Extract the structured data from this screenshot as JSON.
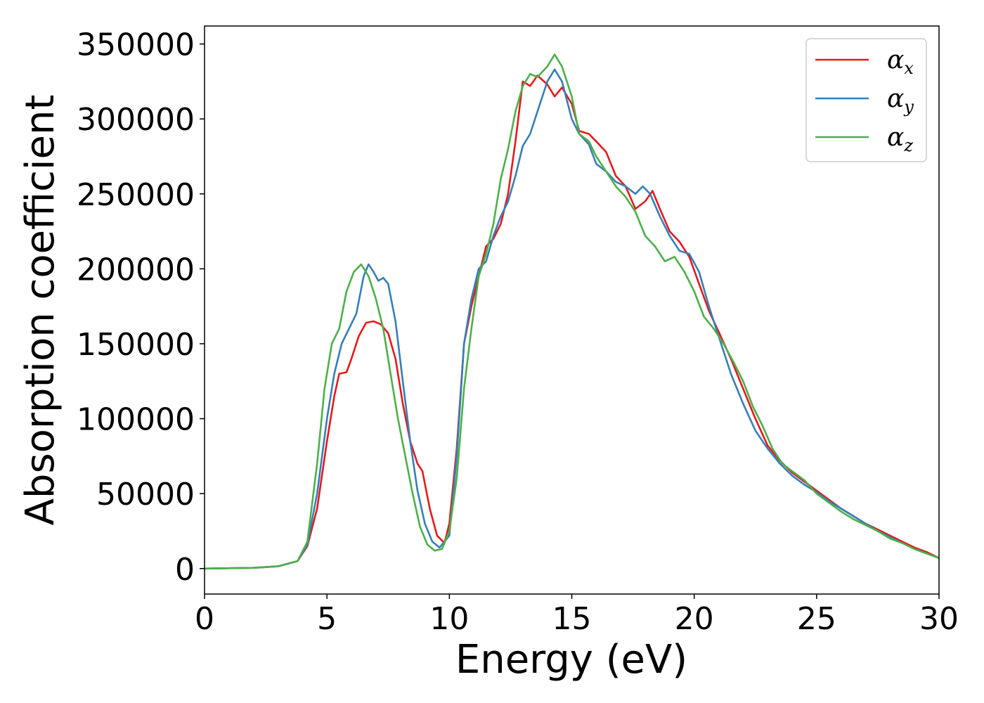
{
  "chart_data": {
    "type": "line",
    "title": "",
    "xlabel": "Energy (eV)",
    "ylabel": "Absorption coefficient",
    "xlim": [
      0,
      30
    ],
    "ylim": [
      -17000,
      362000
    ],
    "xticks": [
      0,
      5,
      10,
      15,
      20,
      25,
      30
    ],
    "xtick_labels": [
      "0",
      "5",
      "10",
      "15",
      "20",
      "25",
      "30"
    ],
    "yticks": [
      0,
      50000,
      100000,
      150000,
      200000,
      250000,
      300000,
      350000
    ],
    "ytick_labels": [
      "0",
      "50000",
      "100000",
      "150000",
      "200000",
      "250000",
      "300000",
      "350000"
    ],
    "grid": false,
    "legend_position": "top-right",
    "series": [
      {
        "name": "α_x",
        "symbol": "α",
        "subscript": "x",
        "color": "#e41a1c",
        "points": [
          [
            0,
            0
          ],
          [
            2,
            500
          ],
          [
            3,
            1500
          ],
          [
            3.8,
            5000
          ],
          [
            4.2,
            15000
          ],
          [
            4.6,
            40000
          ],
          [
            5.0,
            85000
          ],
          [
            5.3,
            115000
          ],
          [
            5.5,
            130000
          ],
          [
            5.8,
            131000
          ],
          [
            6.0,
            140000
          ],
          [
            6.3,
            155000
          ],
          [
            6.6,
            164000
          ],
          [
            6.9,
            165000
          ],
          [
            7.2,
            163000
          ],
          [
            7.5,
            157000
          ],
          [
            7.8,
            140000
          ],
          [
            8.1,
            110000
          ],
          [
            8.4,
            85000
          ],
          [
            8.7,
            70000
          ],
          [
            8.9,
            65000
          ],
          [
            9.2,
            40000
          ],
          [
            9.5,
            22000
          ],
          [
            9.8,
            17000
          ],
          [
            10.0,
            30000
          ],
          [
            10.3,
            80000
          ],
          [
            10.6,
            150000
          ],
          [
            10.9,
            175000
          ],
          [
            11.2,
            195000
          ],
          [
            11.5,
            215000
          ],
          [
            11.8,
            220000
          ],
          [
            12.1,
            230000
          ],
          [
            12.4,
            250000
          ],
          [
            12.7,
            285000
          ],
          [
            13.0,
            325000
          ],
          [
            13.3,
            322000
          ],
          [
            13.6,
            329000
          ],
          [
            14.0,
            323000
          ],
          [
            14.3,
            315000
          ],
          [
            14.6,
            321000
          ],
          [
            15.0,
            310000
          ],
          [
            15.3,
            292000
          ],
          [
            15.7,
            290000
          ],
          [
            16.0,
            285000
          ],
          [
            16.4,
            278000
          ],
          [
            16.8,
            262000
          ],
          [
            17.2,
            255000
          ],
          [
            17.6,
            240000
          ],
          [
            18.0,
            245000
          ],
          [
            18.3,
            252000
          ],
          [
            18.6,
            240000
          ],
          [
            19.0,
            225000
          ],
          [
            19.4,
            218000
          ],
          [
            19.8,
            208000
          ],
          [
            20.2,
            190000
          ],
          [
            20.6,
            172000
          ],
          [
            21.0,
            158000
          ],
          [
            21.5,
            140000
          ],
          [
            22.0,
            120000
          ],
          [
            22.5,
            100000
          ],
          [
            23.0,
            82000
          ],
          [
            23.5,
            72000
          ],
          [
            24.0,
            64000
          ],
          [
            24.5,
            58000
          ],
          [
            25.0,
            52000
          ],
          [
            25.5,
            46000
          ],
          [
            26.0,
            40000
          ],
          [
            26.5,
            35000
          ],
          [
            27.0,
            30000
          ],
          [
            27.5,
            26000
          ],
          [
            28.0,
            22000
          ],
          [
            28.5,
            18000
          ],
          [
            29.0,
            14000
          ],
          [
            29.5,
            11000
          ],
          [
            30.0,
            7000
          ]
        ]
      },
      {
        "name": "α_y",
        "symbol": "α",
        "subscript": "y",
        "color": "#377eb8",
        "points": [
          [
            0,
            0
          ],
          [
            2,
            500
          ],
          [
            3,
            1500
          ],
          [
            3.8,
            5000
          ],
          [
            4.2,
            16000
          ],
          [
            4.6,
            50000
          ],
          [
            5.0,
            100000
          ],
          [
            5.3,
            130000
          ],
          [
            5.6,
            150000
          ],
          [
            5.9,
            160000
          ],
          [
            6.2,
            170000
          ],
          [
            6.5,
            195000
          ],
          [
            6.7,
            203000
          ],
          [
            6.9,
            198000
          ],
          [
            7.1,
            192000
          ],
          [
            7.3,
            194000
          ],
          [
            7.5,
            190000
          ],
          [
            7.8,
            165000
          ],
          [
            8.1,
            125000
          ],
          [
            8.4,
            85000
          ],
          [
            8.7,
            52000
          ],
          [
            9.0,
            30000
          ],
          [
            9.3,
            18000
          ],
          [
            9.6,
            14000
          ],
          [
            10.0,
            22000
          ],
          [
            10.3,
            75000
          ],
          [
            10.6,
            150000
          ],
          [
            10.9,
            180000
          ],
          [
            11.2,
            200000
          ],
          [
            11.5,
            205000
          ],
          [
            11.8,
            222000
          ],
          [
            12.1,
            235000
          ],
          [
            12.4,
            245000
          ],
          [
            12.7,
            262000
          ],
          [
            13.0,
            282000
          ],
          [
            13.3,
            290000
          ],
          [
            13.6,
            305000
          ],
          [
            14.0,
            325000
          ],
          [
            14.3,
            333000
          ],
          [
            14.6,
            325000
          ],
          [
            15.0,
            300000
          ],
          [
            15.3,
            290000
          ],
          [
            15.7,
            283000
          ],
          [
            16.0,
            270000
          ],
          [
            16.4,
            265000
          ],
          [
            16.8,
            258000
          ],
          [
            17.2,
            255000
          ],
          [
            17.6,
            250000
          ],
          [
            17.9,
            255000
          ],
          [
            18.2,
            250000
          ],
          [
            18.6,
            235000
          ],
          [
            19.0,
            222000
          ],
          [
            19.4,
            212000
          ],
          [
            19.8,
            210000
          ],
          [
            20.2,
            198000
          ],
          [
            20.6,
            175000
          ],
          [
            21.0,
            155000
          ],
          [
            21.5,
            130000
          ],
          [
            22.0,
            110000
          ],
          [
            22.5,
            92000
          ],
          [
            23.0,
            80000
          ],
          [
            23.5,
            70000
          ],
          [
            24.0,
            62000
          ],
          [
            24.5,
            56000
          ],
          [
            25.0,
            51000
          ],
          [
            25.5,
            45000
          ],
          [
            26.0,
            40000
          ],
          [
            26.5,
            35000
          ],
          [
            27.0,
            30000
          ],
          [
            27.5,
            25000
          ],
          [
            28.0,
            21000
          ],
          [
            28.5,
            17000
          ],
          [
            29.0,
            13000
          ],
          [
            29.5,
            10000
          ],
          [
            30.0,
            7000
          ]
        ]
      },
      {
        "name": "α_z",
        "symbol": "α",
        "subscript": "z",
        "color": "#4daf4a",
        "points": [
          [
            0,
            0
          ],
          [
            2,
            500
          ],
          [
            3,
            1500
          ],
          [
            3.8,
            5000
          ],
          [
            4.2,
            18000
          ],
          [
            4.6,
            70000
          ],
          [
            4.9,
            120000
          ],
          [
            5.2,
            150000
          ],
          [
            5.5,
            160000
          ],
          [
            5.8,
            185000
          ],
          [
            6.1,
            198000
          ],
          [
            6.4,
            203000
          ],
          [
            6.7,
            195000
          ],
          [
            7.0,
            180000
          ],
          [
            7.3,
            160000
          ],
          [
            7.6,
            130000
          ],
          [
            7.9,
            100000
          ],
          [
            8.2,
            75000
          ],
          [
            8.5,
            50000
          ],
          [
            8.8,
            28000
          ],
          [
            9.1,
            16000
          ],
          [
            9.4,
            12000
          ],
          [
            9.7,
            13000
          ],
          [
            10.0,
            25000
          ],
          [
            10.3,
            60000
          ],
          [
            10.6,
            120000
          ],
          [
            10.9,
            160000
          ],
          [
            11.2,
            195000
          ],
          [
            11.5,
            210000
          ],
          [
            11.8,
            230000
          ],
          [
            12.1,
            260000
          ],
          [
            12.4,
            280000
          ],
          [
            12.7,
            305000
          ],
          [
            13.0,
            322000
          ],
          [
            13.3,
            330000
          ],
          [
            13.6,
            328000
          ],
          [
            14.0,
            335000
          ],
          [
            14.3,
            343000
          ],
          [
            14.6,
            335000
          ],
          [
            15.0,
            315000
          ],
          [
            15.3,
            290000
          ],
          [
            15.7,
            285000
          ],
          [
            16.0,
            275000
          ],
          [
            16.4,
            265000
          ],
          [
            16.8,
            255000
          ],
          [
            17.2,
            248000
          ],
          [
            17.6,
            238000
          ],
          [
            18.0,
            222000
          ],
          [
            18.4,
            215000
          ],
          [
            18.8,
            205000
          ],
          [
            19.2,
            208000
          ],
          [
            19.6,
            198000
          ],
          [
            20.0,
            185000
          ],
          [
            20.4,
            168000
          ],
          [
            20.8,
            160000
          ],
          [
            21.2,
            150000
          ],
          [
            21.6,
            138000
          ],
          [
            22.0,
            125000
          ],
          [
            22.4,
            108000
          ],
          [
            22.8,
            95000
          ],
          [
            23.2,
            80000
          ],
          [
            23.6,
            70000
          ],
          [
            24.0,
            65000
          ],
          [
            24.5,
            59000
          ],
          [
            25.0,
            50000
          ],
          [
            25.5,
            44000
          ],
          [
            26.0,
            38000
          ],
          [
            26.5,
            33000
          ],
          [
            27.0,
            29000
          ],
          [
            27.5,
            25000
          ],
          [
            28.0,
            20000
          ],
          [
            28.5,
            17000
          ],
          [
            29.0,
            13000
          ],
          [
            29.5,
            10000
          ],
          [
            30.0,
            7000
          ]
        ]
      }
    ]
  }
}
